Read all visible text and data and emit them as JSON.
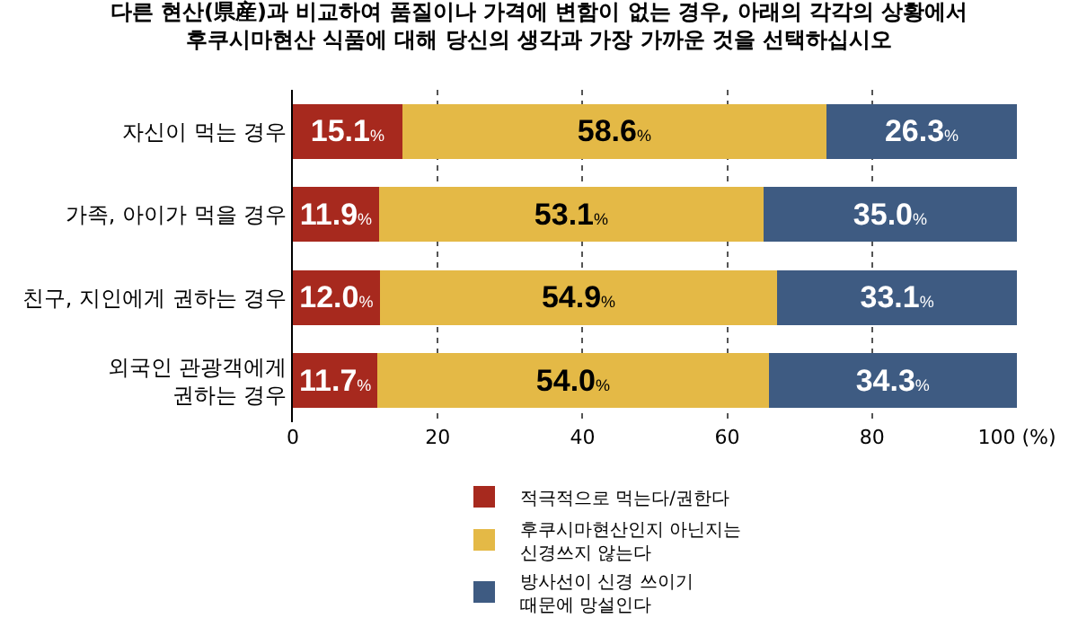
{
  "chart_data": {
    "type": "bar",
    "orientation": "horizontal",
    "stacked": true,
    "title": "다른 현산(県産)과 비교하여 품질이나 가격에 변함이 없는 경우, 아래의 각각의 상황에서\n후쿠시마현산 식품에 대해 당신의 생각과 가장 가까운 것을 선택하십시오",
    "categories": [
      "자신이 먹는 경우",
      "가족, 아이가 먹을 경우",
      "친구, 지인에게 권하는 경우",
      "외국인 관광객에게\n권하는 경우"
    ],
    "series": [
      {
        "name": "적극적으로 먹는다/권한다",
        "color": "#a7291e",
        "values": [
          15.1,
          11.9,
          12.0,
          11.7
        ],
        "value_labels": [
          "15.1%",
          "11.9%",
          "12.0%",
          "11.7%"
        ]
      },
      {
        "name": "후쿠시마현산인지 아닌지는\n신경쓰지 않는다",
        "color": "#e4b946",
        "values": [
          58.6,
          53.1,
          54.9,
          54.0
        ],
        "value_labels": [
          "58.6%",
          "53.1%",
          "54.9%",
          "54.0%"
        ]
      },
      {
        "name": "방사선이 신경 쓰이기\n때문에 망설인다",
        "color": "#3e5b82",
        "values": [
          26.3,
          35.0,
          33.1,
          34.3
        ],
        "value_labels": [
          "26.3%",
          "35.0%",
          "33.1%",
          "34.3%"
        ]
      }
    ],
    "xlim": [
      0,
      100
    ],
    "xticks": [
      0,
      20,
      40,
      60,
      80,
      {
        "value": 100,
        "label": "100 (%)"
      }
    ],
    "grid": "x",
    "legend": "bottom"
  }
}
